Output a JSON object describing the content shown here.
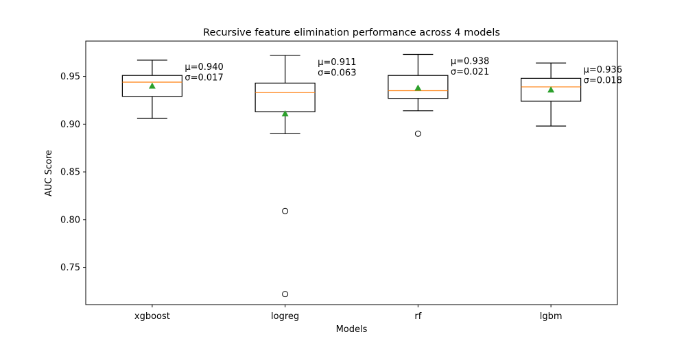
{
  "chart_data": {
    "type": "box",
    "title": "Recursive feature elimination performance across 4 models",
    "xlabel": "Models",
    "ylabel": "AUC Score",
    "ylim": [
      0.711,
      0.987
    ],
    "yticks": [
      "0.75",
      "0.80",
      "0.85",
      "0.90",
      "0.95"
    ],
    "grid": false,
    "legend": "none",
    "colors": {
      "box": "#000000",
      "median": "#ff7f0e",
      "mean_marker": "#2ca02c",
      "outlier": "#000000"
    },
    "categories": [
      "xgboost",
      "logreg",
      "rf",
      "lgbm"
    ],
    "series": [
      {
        "category": "xgboost",
        "whisker_low": 0.906,
        "q1": 0.929,
        "median": 0.944,
        "q3": 0.951,
        "whisker_high": 0.967,
        "mean": 0.94,
        "outliers": [],
        "annotation": [
          "μ=0.940",
          "σ=0.017"
        ]
      },
      {
        "category": "logreg",
        "whisker_low": 0.89,
        "q1": 0.913,
        "median": 0.933,
        "q3": 0.943,
        "whisker_high": 0.972,
        "mean": 0.911,
        "outliers": [
          0.809,
          0.722
        ],
        "annotation": [
          "μ=0.911",
          "σ=0.063"
        ]
      },
      {
        "category": "rf",
        "whisker_low": 0.914,
        "q1": 0.927,
        "median": 0.935,
        "q3": 0.951,
        "whisker_high": 0.973,
        "mean": 0.938,
        "outliers": [
          0.89
        ],
        "annotation": [
          "μ=0.938",
          "σ=0.021"
        ]
      },
      {
        "category": "lgbm",
        "whisker_low": 0.898,
        "q1": 0.924,
        "median": 0.939,
        "q3": 0.948,
        "whisker_high": 0.964,
        "mean": 0.936,
        "outliers": [],
        "annotation": [
          "μ=0.936",
          "σ=0.018"
        ]
      }
    ]
  }
}
